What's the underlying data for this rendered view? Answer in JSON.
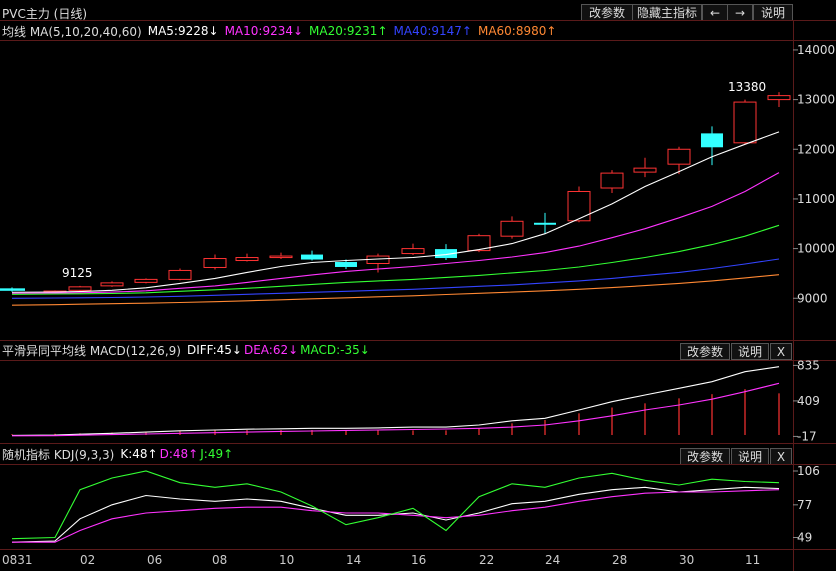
{
  "header": {
    "title": "PVC主力 (日线)",
    "buttons": [
      "改参数",
      "隐藏主指标",
      "←",
      "→",
      "说明"
    ]
  },
  "main_panel": {
    "indicator_name": "均线 MA(5,10,20,40,60)",
    "legend": [
      {
        "text": "MA5:9228↓",
        "color": "#ffffff"
      },
      {
        "text": "MA10:9234↓",
        "color": "#ff33ff"
      },
      {
        "text": "MA20:9231↑",
        "color": "#33ff33"
      },
      {
        "text": "MA40:9147↑",
        "color": "#3344ff"
      },
      {
        "text": "MA60:8980↑",
        "color": "#ff8833"
      }
    ],
    "annotations": [
      "13380",
      "9125"
    ]
  },
  "macd_panel": {
    "indicator_name": "平滑异同平均线 MACD(12,26,9)",
    "legend": [
      {
        "text": "DIFF:45↓",
        "color": "#ffffff"
      },
      {
        "text": "DEA:62↓",
        "color": "#ff33ff"
      },
      {
        "text": "MACD:-35↓",
        "color": "#33ff33"
      }
    ],
    "buttons": [
      "改参数",
      "说明",
      "X"
    ]
  },
  "kdj_panel": {
    "indicator_name": "随机指标 KDJ(9,3,3)",
    "legend": [
      {
        "text": "K:48↑",
        "color": "#ffffff"
      },
      {
        "text": "D:48↑",
        "color": "#ff33ff"
      },
      {
        "text": "J:49↑",
        "color": "#33ff33"
      }
    ],
    "buttons": [
      "改参数",
      "说明",
      "X"
    ]
  },
  "x_labels": [
    "0831",
    "02",
    "06",
    "08",
    "10",
    "14",
    "16",
    "22",
    "24",
    "28",
    "30",
    "11"
  ],
  "chart_data": [
    {
      "type": "candlestick",
      "ylim": [
        8200,
        14200
      ],
      "y_ticks": [
        9000,
        10000,
        11000,
        12000,
        13000,
        14000
      ],
      "y_tick_labels": [
        "9000",
        "10000",
        "11000",
        "12000",
        "13000",
        "14000"
      ],
      "candles": [
        {
          "o": 9200,
          "c": 9150,
          "h": 9220,
          "l": 9130
        },
        {
          "o": 9140,
          "c": 9145,
          "h": 9160,
          "l": 9125
        },
        {
          "o": 9160,
          "c": 9230,
          "h": 9250,
          "l": 9140
        },
        {
          "o": 9250,
          "c": 9310,
          "h": 9340,
          "l": 9230
        },
        {
          "o": 9320,
          "c": 9380,
          "h": 9400,
          "l": 9300
        },
        {
          "o": 9380,
          "c": 9560,
          "h": 9600,
          "l": 9360
        },
        {
          "o": 9620,
          "c": 9800,
          "h": 9880,
          "l": 9580
        },
        {
          "o": 9760,
          "c": 9820,
          "h": 9900,
          "l": 9740
        },
        {
          "o": 9820,
          "c": 9850,
          "h": 9920,
          "l": 9790
        },
        {
          "o": 9880,
          "c": 9780,
          "h": 9960,
          "l": 9760
        },
        {
          "o": 9730,
          "c": 9630,
          "h": 9780,
          "l": 9590
        },
        {
          "o": 9700,
          "c": 9850,
          "h": 9900,
          "l": 9520
        },
        {
          "o": 9900,
          "c": 10000,
          "h": 10100,
          "l": 9870
        },
        {
          "o": 9990,
          "c": 9810,
          "h": 10090,
          "l": 9770
        },
        {
          "o": 9960,
          "c": 10260,
          "h": 10300,
          "l": 9930
        },
        {
          "o": 10250,
          "c": 10550,
          "h": 10650,
          "l": 10200
        },
        {
          "o": 10520,
          "c": 10480,
          "h": 10720,
          "l": 10300
        },
        {
          "o": 10560,
          "c": 11150,
          "h": 11250,
          "l": 10530
        },
        {
          "o": 11220,
          "c": 11520,
          "h": 11580,
          "l": 11120
        },
        {
          "o": 11540,
          "c": 11620,
          "h": 11830,
          "l": 11440
        },
        {
          "o": 11700,
          "c": 12000,
          "h": 12050,
          "l": 11500
        },
        {
          "o": 12320,
          "c": 12040,
          "h": 12460,
          "l": 11680
        },
        {
          "o": 12130,
          "c": 12950,
          "h": 13000,
          "l": 12100
        },
        {
          "o": 13000,
          "c": 13080,
          "h": 13150,
          "l": 12850
        }
      ],
      "candle_x": [
        12,
        55,
        80,
        112,
        146,
        180,
        215,
        247,
        281,
        312,
        346,
        378,
        413,
        446,
        479,
        512,
        545,
        579,
        612,
        645,
        679,
        712,
        745,
        779
      ],
      "series": [
        {
          "name": "MA5",
          "color": "#ffffff",
          "values": [
            9120,
            9125,
            9135,
            9160,
            9210,
            9300,
            9400,
            9520,
            9640,
            9720,
            9760,
            9790,
            9820,
            9880,
            9980,
            10100,
            10300,
            10600,
            10900,
            11250,
            11550,
            11850,
            12100,
            12350
          ]
        },
        {
          "name": "MA10",
          "color": "#ff33ff",
          "values": [
            9100,
            9105,
            9110,
            9125,
            9150,
            9200,
            9250,
            9320,
            9400,
            9470,
            9540,
            9590,
            9640,
            9700,
            9760,
            9830,
            9920,
            10050,
            10220,
            10400,
            10620,
            10850,
            11150,
            11530
          ]
        },
        {
          "name": "MA20",
          "color": "#33ff33",
          "values": [
            9080,
            9085,
            9090,
            9095,
            9110,
            9140,
            9170,
            9200,
            9240,
            9280,
            9320,
            9350,
            9380,
            9420,
            9460,
            9510,
            9560,
            9630,
            9720,
            9820,
            9940,
            10080,
            10250,
            10470
          ]
        },
        {
          "name": "MA40",
          "color": "#3344ff",
          "values": [
            9000,
            9005,
            9010,
            9015,
            9025,
            9040,
            9060,
            9080,
            9100,
            9120,
            9140,
            9160,
            9180,
            9210,
            9240,
            9270,
            9310,
            9350,
            9400,
            9460,
            9520,
            9600,
            9690,
            9790
          ]
        },
        {
          "name": "MA60",
          "color": "#ff8833",
          "values": [
            8860,
            8870,
            8880,
            8890,
            8900,
            8915,
            8930,
            8950,
            8970,
            8990,
            9010,
            9030,
            9050,
            9075,
            9100,
            9125,
            9150,
            9180,
            9215,
            9255,
            9300,
            9350,
            9410,
            9475
          ]
        }
      ]
    },
    {
      "type": "macd",
      "ylim": [
        -60,
        900
      ],
      "y_ticks": [
        -17,
        409,
        835
      ],
      "y_tick_labels": [
        "-17",
        "409",
        "835"
      ],
      "series": [
        {
          "name": "DIFF",
          "color": "#ffffff",
          "values": [
            -5,
            0,
            10,
            20,
            35,
            50,
            60,
            70,
            75,
            80,
            80,
            85,
            95,
            95,
            120,
            170,
            200,
            300,
            400,
            480,
            560,
            640,
            760,
            820
          ]
        },
        {
          "name": "DEA",
          "color": "#ff33ff",
          "values": [
            -10,
            -8,
            -2,
            5,
            12,
            20,
            28,
            35,
            43,
            48,
            55,
            60,
            66,
            72,
            80,
            95,
            120,
            170,
            230,
            300,
            360,
            430,
            520,
            620
          ]
        }
      ],
      "histogram_values": [
        10,
        15,
        20,
        30,
        40,
        50,
        60,
        60,
        60,
        60,
        55,
        55,
        55,
        55,
        80,
        140,
        180,
        260,
        330,
        380,
        440,
        490,
        550,
        500
      ]
    },
    {
      "type": "kdj",
      "ylim": [
        40,
        112
      ],
      "y_ticks": [
        49,
        77,
        106
      ],
      "y_tick_labels": [
        "49",
        "77",
        "106"
      ],
      "series": [
        {
          "name": "K",
          "color": "#ffffff",
          "values": [
            45,
            46,
            65,
            77,
            85,
            82,
            80,
            82,
            80,
            74,
            68,
            68,
            70,
            64,
            70,
            78,
            80,
            86,
            90,
            92,
            88,
            90,
            92,
            91
          ]
        },
        {
          "name": "D",
          "color": "#ff33ff",
          "values": [
            45,
            45,
            55,
            65,
            70,
            72,
            74,
            75,
            75,
            72,
            70,
            70,
            68,
            66,
            68,
            72,
            75,
            80,
            84,
            87,
            88,
            88,
            89,
            90
          ]
        },
        {
          "name": "J",
          "color": "#33ff33",
          "values": [
            48,
            49,
            90,
            100,
            106,
            96,
            92,
            95,
            88,
            76,
            60,
            66,
            74,
            55,
            84,
            95,
            92,
            100,
            104,
            98,
            94,
            99,
            97,
            96
          ]
        }
      ]
    }
  ]
}
